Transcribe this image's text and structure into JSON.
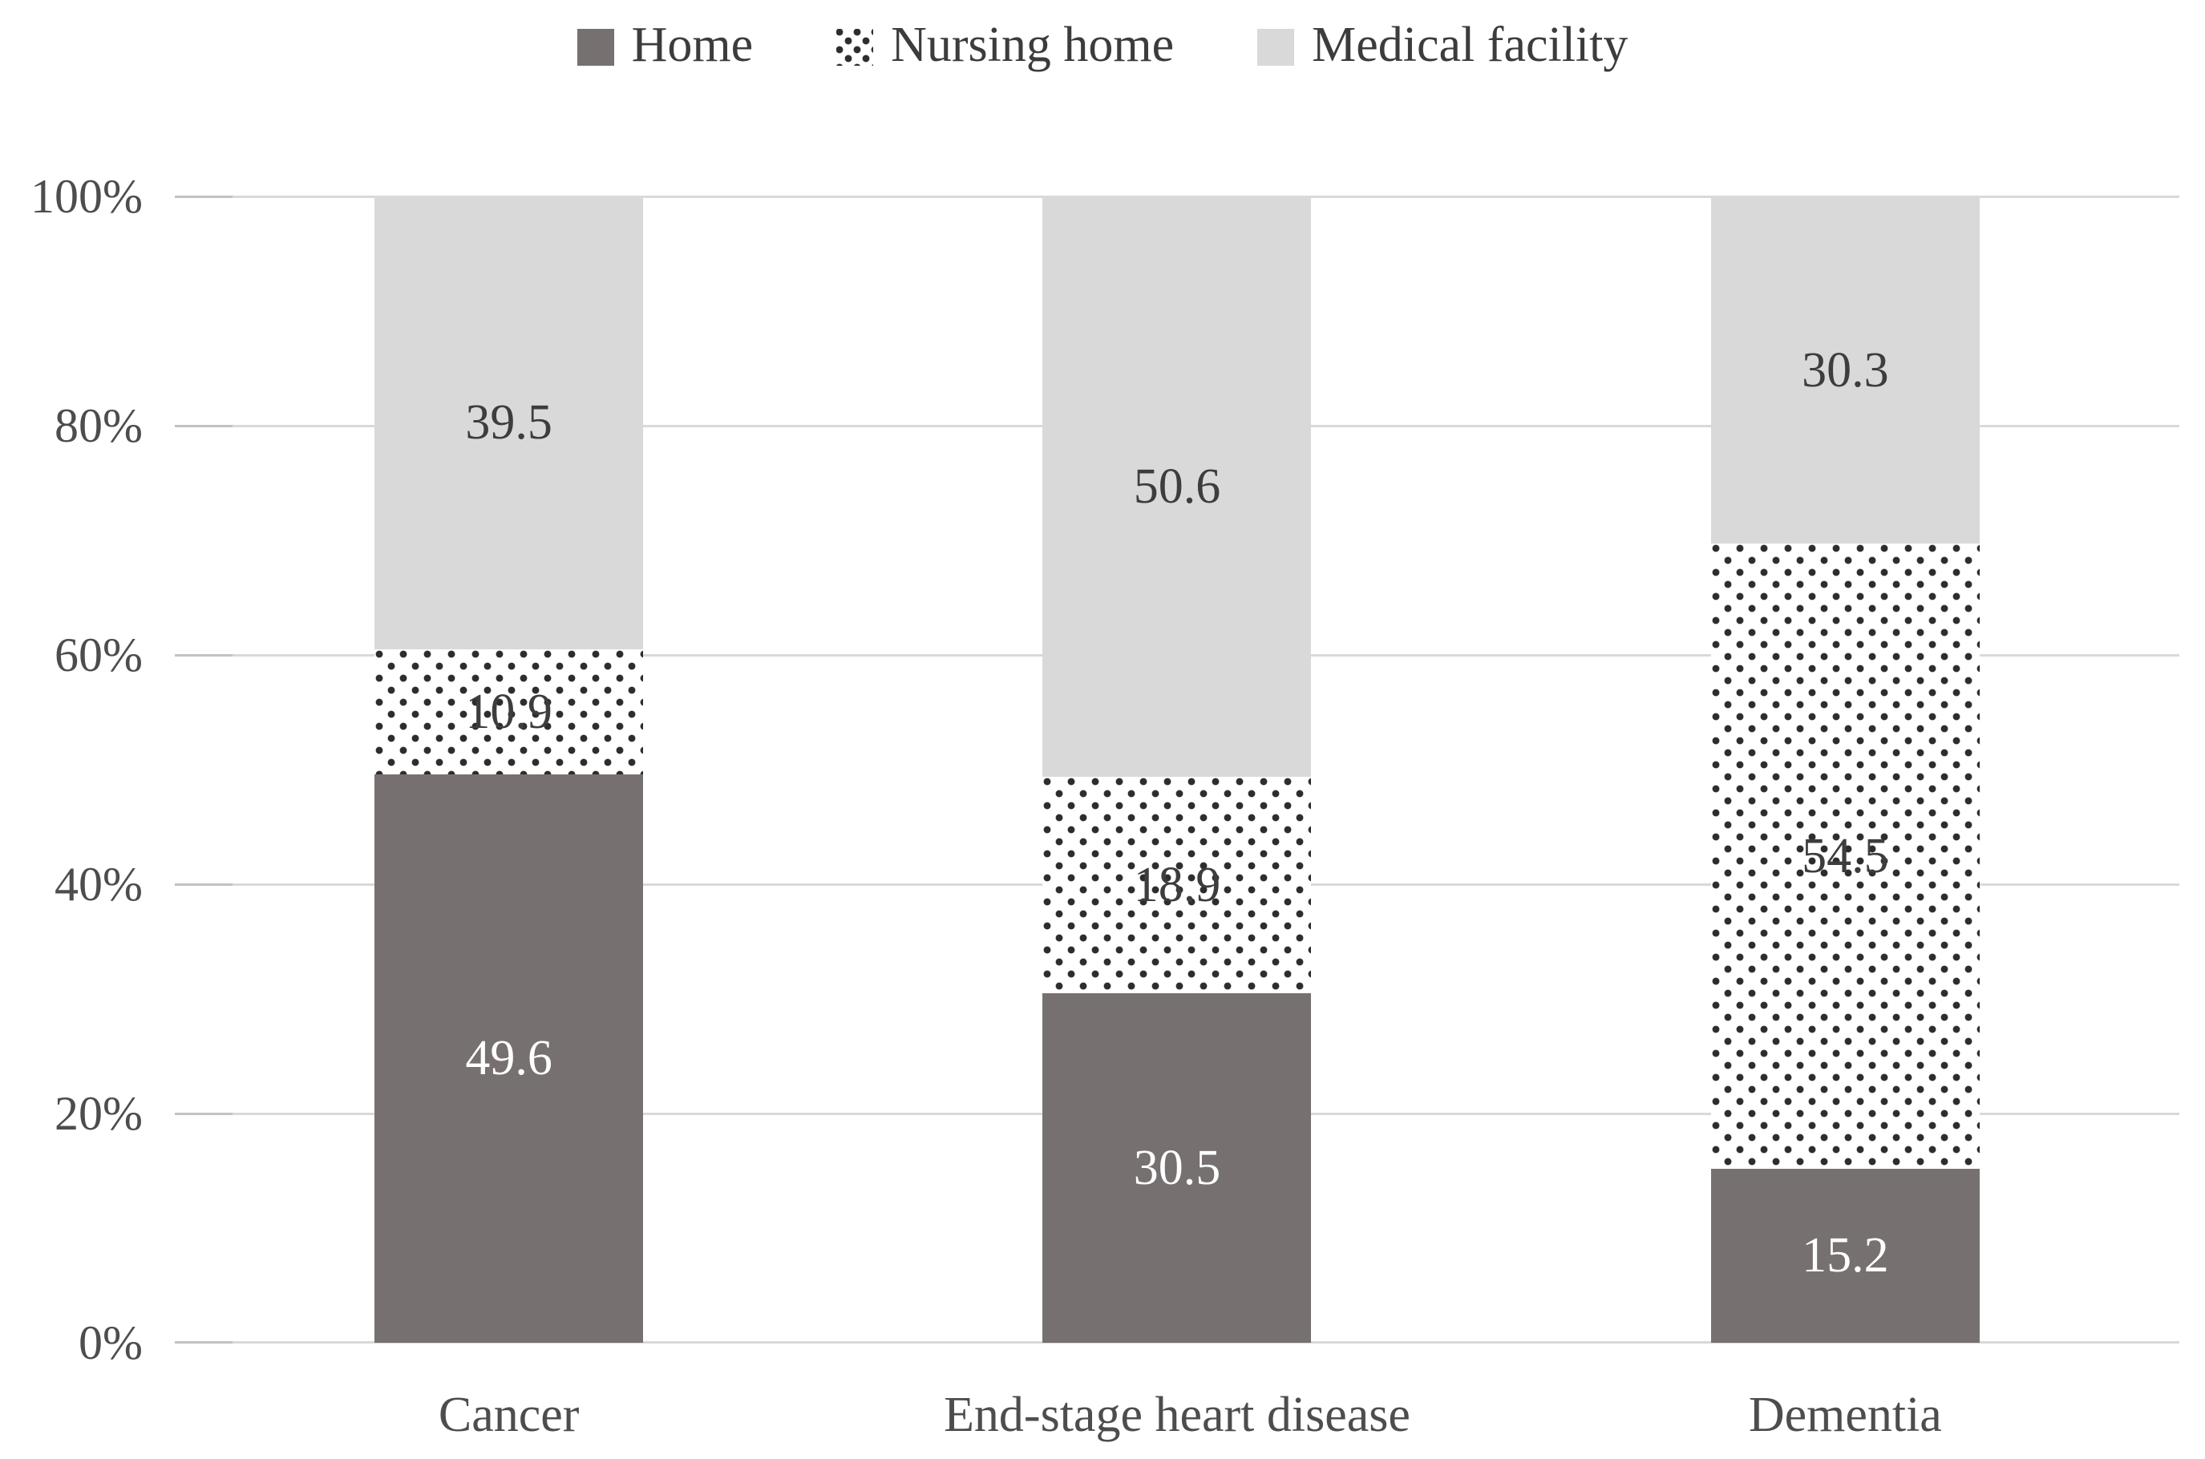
{
  "chart_data": {
    "type": "bar",
    "variant": "stacked-100",
    "title": "",
    "xlabel": "",
    "ylabel": "",
    "categories": [
      "Cancer",
      "End-stage heart disease",
      "Dementia"
    ],
    "series": [
      {
        "name": "Home",
        "values": [
          49.6,
          30.5,
          15.2
        ],
        "fill": "solid",
        "color": "#767170",
        "label_color": "#ffffff"
      },
      {
        "name": "Nursing home",
        "values": [
          10.9,
          18.9,
          54.5
        ],
        "fill": "dotted",
        "color": "#ffffff",
        "dot_color": "#2d2d2d",
        "label_color": "#3d3d3d"
      },
      {
        "name": "Medical facility",
        "values": [
          39.5,
          50.6,
          30.3
        ],
        "fill": "solid",
        "color": "#d9d9d9",
        "label_color": "#3d3d3d"
      }
    ],
    "y_ticks": [
      "0%",
      "20%",
      "40%",
      "60%",
      "80%",
      "100%"
    ],
    "ylim": [
      0,
      100
    ],
    "grid": "horizontal",
    "gridline_color": "#d9d9d9",
    "legend_position": "top",
    "axis_text_color": "#4d4d4d",
    "background_color": "#ffffff"
  }
}
